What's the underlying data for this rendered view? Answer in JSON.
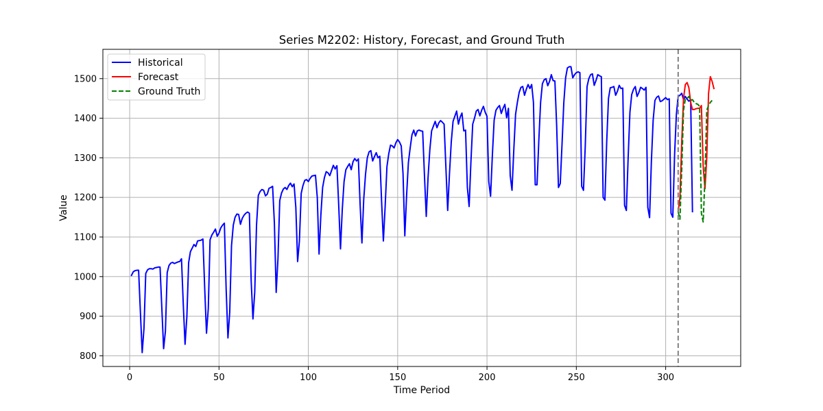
{
  "chart_data": {
    "type": "line",
    "title": "Series M2202: History, Forecast, and Ground Truth",
    "xlabel": "Time Period",
    "ylabel": "Value",
    "xlim": [
      -15,
      342
    ],
    "ylim": [
      773,
      1574
    ],
    "xticks": [
      0,
      50,
      100,
      150,
      200,
      250,
      300
    ],
    "yticks": [
      800,
      900,
      1000,
      1100,
      1200,
      1300,
      1400,
      1500
    ],
    "grid": true,
    "legend_position": "top-left",
    "forecast_start_marker": 307,
    "series": [
      {
        "name": "Historical",
        "color": "#0000ff",
        "style": "solid",
        "x_start": 1,
        "values": [
          1003,
          1012,
          1015,
          1016,
          1016,
          910,
          808,
          869,
          1008,
          1017,
          1020,
          1020,
          1019,
          1022,
          1023,
          1024,
          1024,
          920,
          818,
          862,
          1010,
          1028,
          1034,
          1036,
          1033,
          1035,
          1037,
          1038,
          1045,
          930,
          829,
          898,
          1035,
          1063,
          1072,
          1081,
          1076,
          1090,
          1091,
          1092,
          1095,
          970,
          857,
          920,
          1093,
          1105,
          1112,
          1120,
          1102,
          1110,
          1123,
          1130,
          1135,
          968,
          845,
          910,
          1078,
          1130,
          1150,
          1158,
          1157,
          1132,
          1147,
          1155,
          1160,
          1163,
          1160,
          990,
          893,
          961,
          1130,
          1205,
          1215,
          1220,
          1218,
          1204,
          1208,
          1223,
          1225,
          1228,
          1135,
          960,
          1045,
          1192,
          1211,
          1221,
          1225,
          1220,
          1230,
          1236,
          1227,
          1234,
          1175,
          1038,
          1090,
          1210,
          1230,
          1243,
          1245,
          1240,
          1248,
          1254,
          1255,
          1256,
          1200,
          1057,
          1155,
          1225,
          1250,
          1265,
          1262,
          1255,
          1268,
          1281,
          1272,
          1280,
          1180,
          1070,
          1170,
          1240,
          1270,
          1278,
          1285,
          1270,
          1290,
          1298,
          1292,
          1297,
          1180,
          1085,
          1195,
          1258,
          1300,
          1315,
          1318,
          1292,
          1303,
          1313,
          1300,
          1304,
          1190,
          1090,
          1178,
          1278,
          1310,
          1332,
          1330,
          1325,
          1338,
          1346,
          1340,
          1330,
          1260,
          1103,
          1205,
          1288,
          1325,
          1358,
          1370,
          1355,
          1368,
          1370,
          1368,
          1367,
          1255,
          1152,
          1250,
          1320,
          1368,
          1380,
          1392,
          1376,
          1388,
          1394,
          1390,
          1385,
          1275,
          1167,
          1260,
          1340,
          1392,
          1405,
          1418,
          1385,
          1403,
          1413,
          1368,
          1370,
          1226,
          1177,
          1290,
          1385,
          1400,
          1418,
          1422,
          1406,
          1420,
          1430,
          1415,
          1405,
          1240,
          1203,
          1306,
          1395,
          1420,
          1427,
          1432,
          1412,
          1425,
          1435,
          1401,
          1425,
          1255,
          1218,
          1320,
          1410,
          1440,
          1465,
          1478,
          1480,
          1458,
          1473,
          1485,
          1475,
          1485,
          1440,
          1232,
          1232,
          1343,
          1440,
          1487,
          1497,
          1500,
          1482,
          1493,
          1510,
          1495,
          1494,
          1380,
          1225,
          1235,
          1335,
          1440,
          1502,
          1527,
          1530,
          1530,
          1502,
          1510,
          1515,
          1517,
          1515,
          1228,
          1218,
          1330,
          1480,
          1500,
          1510,
          1512,
          1483,
          1495,
          1510,
          1507,
          1505,
          1200,
          1193,
          1340,
          1450,
          1477,
          1478,
          1480,
          1458,
          1468,
          1483,
          1475,
          1476,
          1180,
          1167,
          1300,
          1415,
          1460,
          1473,
          1480,
          1455,
          1465,
          1478,
          1475,
          1471,
          1478,
          1175,
          1149,
          1290,
          1395,
          1445,
          1453,
          1456,
          1442,
          1444,
          1448,
          1452,
          1447,
          1449,
          1160,
          1150,
          1308,
          1410,
          1455,
          1458,
          1463,
          1447,
          1455,
          1448,
          1443,
          1447,
          1164
        ]
      },
      {
        "name": "Forecast",
        "color": "#ff0000",
        "style": "solid",
        "x_start": 307,
        "values": [
          1164,
          1200,
          1340,
          1450,
          1485,
          1490,
          1477,
          1440,
          1422,
          1422,
          1424,
          1425,
          1425,
          1432,
          1280,
          1222,
          1300,
          1462,
          1505,
          1493,
          1475
        ]
      },
      {
        "name": "Ground Truth",
        "color": "#008000",
        "style": "dashed",
        "x_start": 307,
        "values": [
          1164,
          1145,
          1270,
          1420,
          1448,
          1450,
          1455,
          1445,
          1447,
          1440,
          1437,
          1435,
          1430,
          1160,
          1138,
          1250,
          1420,
          1432,
          1440,
          1445
        ]
      }
    ]
  }
}
